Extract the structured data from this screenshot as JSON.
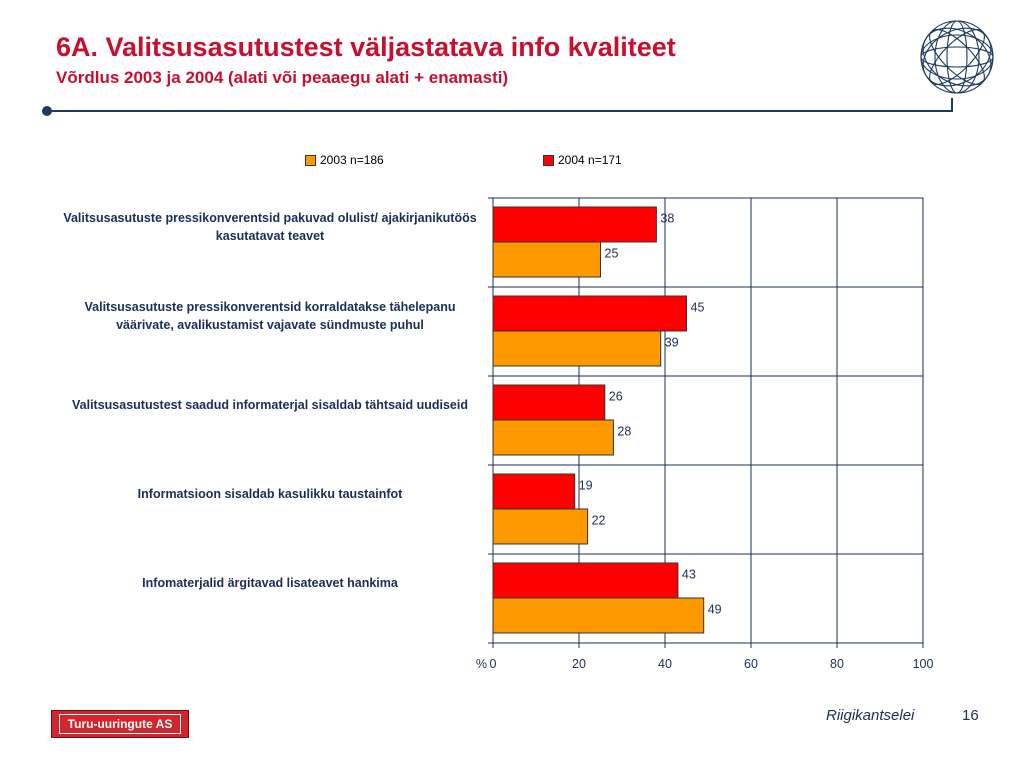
{
  "header": {
    "title": "6A. Valitsusasutustest väljastatava info kvaliteet",
    "subtitle": "Võrdlus 2003 ja 2004 (alati või peaaegu alati + enamasti)"
  },
  "footer": {
    "logo_text": "Turu-uuringute AS",
    "source": "Riigikantselei",
    "page": "16"
  },
  "colors": {
    "title": "#c8102e",
    "series_2003": "#ff9900",
    "series_2004": "#ff0000",
    "text": "#1a2e5a"
  },
  "chart_data": {
    "type": "bar",
    "orientation": "horizontal",
    "categories": [
      "Valitsusasutuste pressikonverentsid pakuvad olulist/ ajakirjanikutöös kasutatavat teavet",
      "Valitsusasutuste pressikonverentsid korraldatakse tähelepanu väärivate, avalikustamist vajavate sündmuste puhul",
      "Valitsusasutustest saadud informaterjal sisaldab tähtsaid uudiseid",
      "Informatsioon sisaldab  kasulikku taustainfot",
      "Infomaterjalid ärgitavad lisateavet hankima"
    ],
    "series": [
      {
        "name": "2003 n=186",
        "values": [
          25,
          39,
          28,
          22,
          49
        ],
        "color": "#ff9900"
      },
      {
        "name": "2004 n=171",
        "values": [
          38,
          45,
          26,
          19,
          43
        ],
        "color": "#ff0000"
      }
    ],
    "xlim": [
      0,
      100
    ],
    "xticks": [
      "0",
      "20",
      "40",
      "60",
      "80",
      "100"
    ],
    "xlabel": "%",
    "grid": true,
    "legend": "top"
  }
}
